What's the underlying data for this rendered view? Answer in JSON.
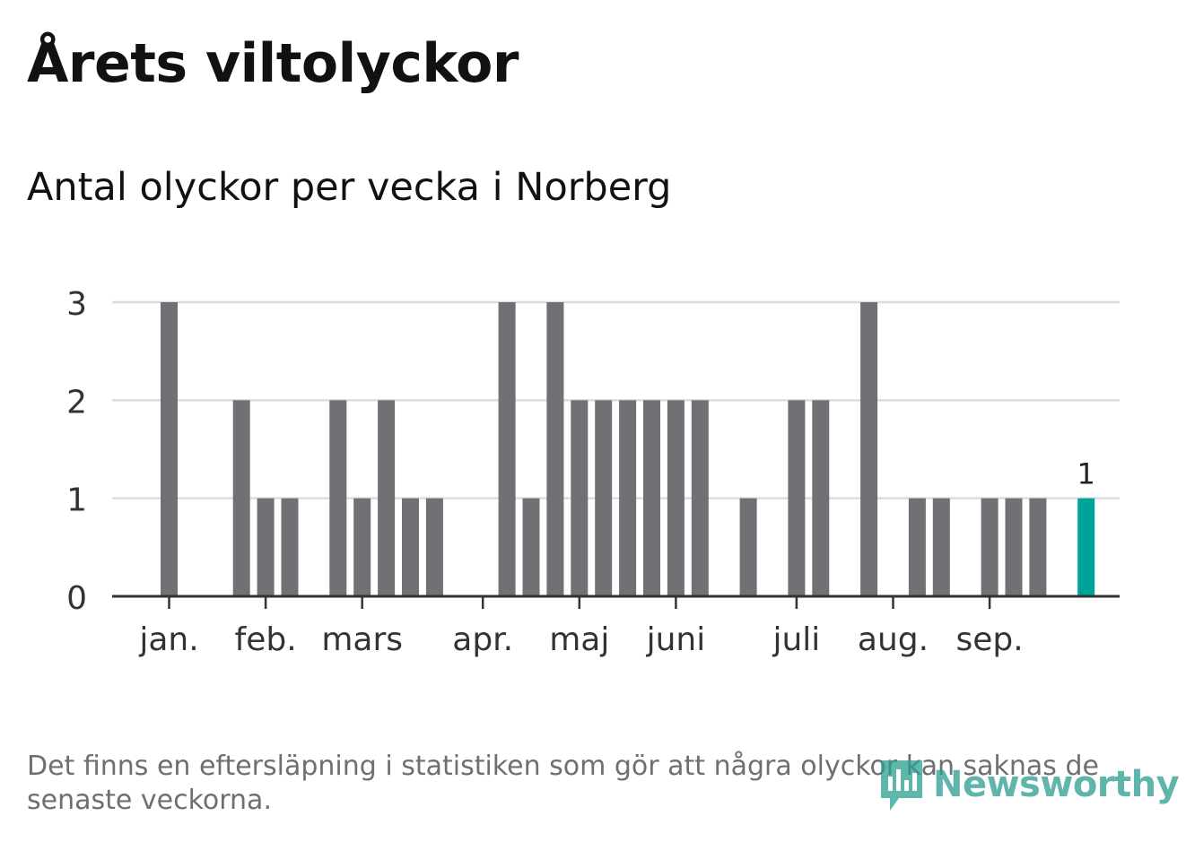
{
  "header": {
    "title": "Årets viltolyckor",
    "subtitle": "Antal olyckor per vecka i Norberg"
  },
  "chart_data": {
    "type": "bar",
    "title": "Årets viltolyckor",
    "subtitle": "Antal olyckor per vecka i Norberg",
    "xlabel": "",
    "ylabel": "",
    "ylim": [
      0,
      3
    ],
    "yticks": [
      0,
      1,
      2,
      3
    ],
    "grid": true,
    "week_count": 39,
    "values": [
      3,
      0,
      0,
      2,
      1,
      1,
      0,
      2,
      1,
      2,
      1,
      1,
      0,
      0,
      3,
      1,
      3,
      2,
      2,
      2,
      2,
      2,
      2,
      0,
      1,
      0,
      2,
      2,
      0,
      3,
      0,
      1,
      1,
      0,
      1,
      1,
      1,
      0,
      1
    ],
    "month_labels": [
      {
        "label": "jan.",
        "week_index": 0
      },
      {
        "label": "feb.",
        "week_index": 4
      },
      {
        "label": "mars",
        "week_index": 8
      },
      {
        "label": "apr.",
        "week_index": 13
      },
      {
        "label": "maj",
        "week_index": 17
      },
      {
        "label": "juni",
        "week_index": 21
      },
      {
        "label": "juli",
        "week_index": 26
      },
      {
        "label": "aug.",
        "week_index": 30
      },
      {
        "label": "sep.",
        "week_index": 34
      }
    ],
    "highlight_index": 38,
    "highlight_label": "1",
    "bar_color": "#707075",
    "highlight_color": "#00a39a"
  },
  "footer": {
    "note": "Det finns en eftersläpning i statistiken som gör att några olyckor kan saknas de senaste veckorna.",
    "brand": "Newsworthy"
  },
  "colors": {
    "grid": "#dcdcdc",
    "axis": "#333333",
    "brand": "#2a9d8f"
  }
}
